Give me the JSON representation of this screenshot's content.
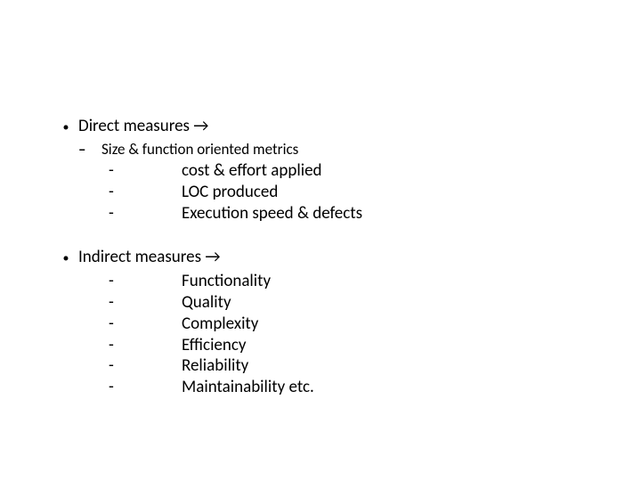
{
  "sections": [
    {
      "title": "Direct measures →",
      "sub": "Size & function oriented metrics",
      "items": [
        "cost & effort applied",
        "LOC produced",
        "Execution speed & defects"
      ]
    },
    {
      "title": "Indirect measures →",
      "sub": null,
      "items": [
        "Functionality",
        "Quality",
        "Complexity",
        "Efficiency",
        "Reliability",
        "Maintainability etc."
      ]
    }
  ],
  "markers": {
    "l1": "•",
    "l2": "–",
    "l3": "-"
  }
}
